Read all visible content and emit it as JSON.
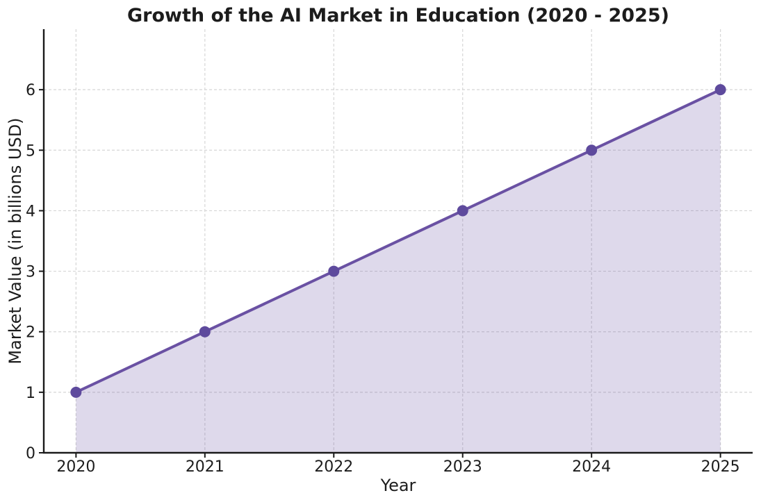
{
  "chart_data": {
    "type": "line",
    "title": "Growth of the AI Market in Education (2020 - 2025)",
    "xlabel": "Year",
    "ylabel": "Market Value (in billions USD)",
    "x": [
      2020,
      2021,
      2022,
      2023,
      2024,
      2025
    ],
    "series": [
      {
        "values": [
          1,
          2,
          3,
          4,
          5,
          6
        ]
      }
    ],
    "xticks": [
      2020,
      2021,
      2022,
      2023,
      2024,
      2025
    ],
    "xtick_labels": [
      "2020",
      "2021",
      "2022",
      "2023",
      "2024",
      "2025"
    ],
    "yticks": [
      0,
      1,
      2,
      3,
      4,
      5,
      6
    ],
    "ytick_labels": [
      "0",
      "1",
      "2",
      "3",
      "4",
      "5",
      "6"
    ],
    "xlim": [
      2019.75,
      2025.25
    ],
    "ylim": [
      0,
      7
    ],
    "grid": true,
    "grid_style": "dashed",
    "legend": "none",
    "area_fill": true,
    "marker": "circle",
    "colors": {
      "line": "#6a51a3",
      "marker": "#5e4a9d",
      "area_fill": "#6a51a3",
      "area_fill_opacity": 0.22,
      "grid": "#d6d6d6",
      "spine": "#1a1a1a",
      "text": "#1c1c1c",
      "background": "#ffffff"
    }
  }
}
